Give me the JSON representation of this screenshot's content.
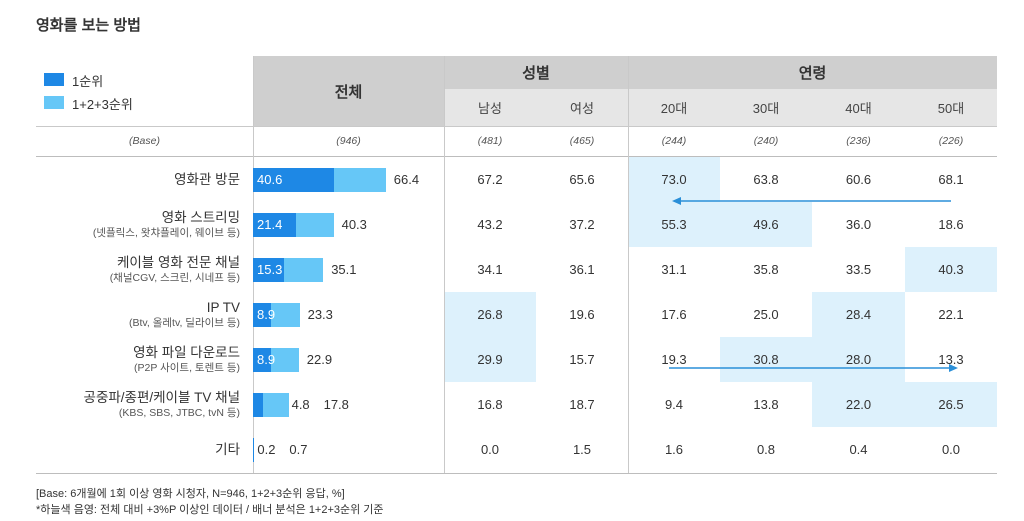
{
  "title": "영화를 보는 방법",
  "chart_data": {
    "type": "table",
    "legend": [
      "1순위",
      "1+2+3순위"
    ],
    "header": {
      "total": "전체",
      "gender_group": "성별",
      "age_group": "연령",
      "columns": [
        "남성",
        "여성",
        "20대",
        "30대",
        "40대",
        "50대"
      ]
    },
    "base": {
      "label": "(Base)",
      "total": "(946)",
      "columns": [
        "(481)",
        "(465)",
        "(244)",
        "(240)",
        "(236)",
        "(226)"
      ]
    },
    "rows": [
      {
        "label": "영화관 방문",
        "sub": "",
        "first": 40.6,
        "first_label": "40.6",
        "top3": 66.4,
        "top3_label": "66.4",
        "values": [
          "67.2",
          "65.6",
          "73.0",
          "63.8",
          "60.6",
          "68.1"
        ],
        "highlight": [
          false,
          false,
          true,
          false,
          false,
          false
        ]
      },
      {
        "label": "영화 스트리밍",
        "sub": "(넷플릭스, 왓챠플레이, 웨이브 등)",
        "first": 21.4,
        "first_label": "21.4",
        "top3": 40.3,
        "top3_label": "40.3",
        "values": [
          "43.2",
          "37.2",
          "55.3",
          "49.6",
          "36.0",
          "18.6"
        ],
        "highlight": [
          false,
          false,
          true,
          true,
          false,
          false
        ]
      },
      {
        "label": "케이블 영화 전문 채널",
        "sub": "(채널CGV, 스크린, 시네프 등)",
        "first": 15.3,
        "first_label": "15.3",
        "top3": 35.1,
        "top3_label": "35.1",
        "values": [
          "34.1",
          "36.1",
          "31.1",
          "35.8",
          "33.5",
          "40.3"
        ],
        "highlight": [
          false,
          false,
          false,
          false,
          false,
          true
        ]
      },
      {
        "label": "IP TV",
        "sub": "(Btv, 올레tv, 딜라이브 등)",
        "first": 8.9,
        "first_label": "8.9",
        "top3": 23.3,
        "top3_label": "23.3",
        "values": [
          "26.8",
          "19.6",
          "17.6",
          "25.0",
          "28.4",
          "22.1"
        ],
        "highlight": [
          true,
          false,
          false,
          false,
          true,
          false
        ]
      },
      {
        "label": "영화 파일 다운로드",
        "sub": "(P2P 사이트, 토렌트 등)",
        "first": 8.9,
        "first_label": "8.9",
        "top3": 22.9,
        "top3_label": "22.9",
        "values": [
          "29.9",
          "15.7",
          "19.3",
          "30.8",
          "28.0",
          "13.3"
        ],
        "highlight": [
          true,
          false,
          false,
          true,
          true,
          false
        ]
      },
      {
        "label": "공중파/종편/케이블 TV 채널",
        "sub": "(KBS, SBS, JTBC, tvN 등)",
        "first": 4.8,
        "first_label": "4.8",
        "top3": 17.8,
        "top3_label": "17.8",
        "values": [
          "16.8",
          "18.7",
          "9.4",
          "13.8",
          "22.0",
          "26.5"
        ],
        "highlight": [
          false,
          false,
          false,
          false,
          true,
          true
        ]
      },
      {
        "label": "기타",
        "sub": "",
        "first": 0.2,
        "first_label": "0.2",
        "top3": 0.7,
        "top3_label": "0.7",
        "values": [
          "0.0",
          "1.5",
          "1.6",
          "0.8",
          "0.4",
          "0.0"
        ],
        "highlight": [
          false,
          false,
          false,
          false,
          false,
          false
        ]
      }
    ],
    "annotations": [
      {
        "type": "arrow",
        "row": 1,
        "from_col": 5,
        "to_col": 2,
        "direction": "left"
      },
      {
        "type": "arrow",
        "row": 5,
        "from_col": 2,
        "to_col": 5,
        "direction": "right"
      }
    ],
    "colors": {
      "first": "#1e88e5",
      "top3": "#66c7f7",
      "highlight": "#ddf1fc",
      "arrow": "#2a8fd8"
    }
  },
  "footnotes": [
    "[Base: 6개월에 1회 이상 영화 시청자, N=946, 1+2+3순위 응답, %]",
    "*하늘색 음영: 전체 대비 +3%P 이상인 데이터 / 배너 분석은 1+2+3순위 기준"
  ]
}
